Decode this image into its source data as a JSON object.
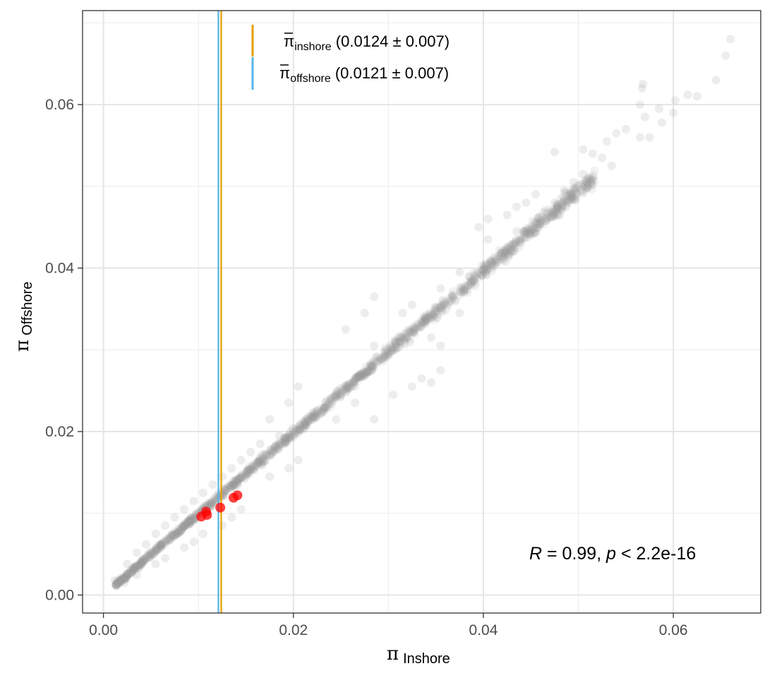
{
  "chart_data": {
    "type": "scatter",
    "xlabel": {
      "symbol": "π",
      "sub": "Inshore"
    },
    "ylabel": {
      "symbol": "π",
      "sub": "Offshore"
    },
    "xlim": [
      -0.0022,
      0.0692
    ],
    "ylim": [
      -0.0022,
      0.0715
    ],
    "x_ticks": [
      0.0,
      0.02,
      0.04,
      0.06
    ],
    "x_tick_labels": [
      "0.00",
      "0.02",
      "0.04",
      "0.06"
    ],
    "y_ticks": [
      0.0,
      0.02,
      0.04,
      0.06
    ],
    "y_tick_labels": [
      "0.00",
      "0.02",
      "0.04",
      "0.06"
    ],
    "grid": true,
    "background_series": {
      "color": "#999999",
      "description_points_from": 0.0013,
      "outliers": [
        {
          "x": 0.066,
          "y": 0.068
        },
        {
          "x": 0.0655,
          "y": 0.066
        },
        {
          "x": 0.0645,
          "y": 0.063
        },
        {
          "x": 0.0625,
          "y": 0.061
        },
        {
          "x": 0.0615,
          "y": 0.0612
        },
        {
          "x": 0.06,
          "y": 0.059
        },
        {
          "x": 0.0602,
          "y": 0.0605
        },
        {
          "x": 0.0585,
          "y": 0.0595
        },
        {
          "x": 0.0588,
          "y": 0.0578
        },
        {
          "x": 0.0568,
          "y": 0.0625
        },
        {
          "x": 0.0567,
          "y": 0.062
        },
        {
          "x": 0.0565,
          "y": 0.06
        },
        {
          "x": 0.057,
          "y": 0.0585
        },
        {
          "x": 0.0565,
          "y": 0.056
        },
        {
          "x": 0.0575,
          "y": 0.056
        },
        {
          "x": 0.055,
          "y": 0.057
        },
        {
          "x": 0.054,
          "y": 0.0565
        },
        {
          "x": 0.053,
          "y": 0.0555
        },
        {
          "x": 0.0515,
          "y": 0.054
        },
        {
          "x": 0.0505,
          "y": 0.0545
        },
        {
          "x": 0.0525,
          "y": 0.0535
        },
        {
          "x": 0.0535,
          "y": 0.0525
        },
        {
          "x": 0.0505,
          "y": 0.0515
        },
        {
          "x": 0.0495,
          "y": 0.0505
        },
        {
          "x": 0.0475,
          "y": 0.0542
        },
        {
          "x": 0.0485,
          "y": 0.0495
        },
        {
          "x": 0.0475,
          "y": 0.048
        },
        {
          "x": 0.0465,
          "y": 0.047
        },
        {
          "x": 0.0455,
          "y": 0.049
        },
        {
          "x": 0.0445,
          "y": 0.048
        },
        {
          "x": 0.0455,
          "y": 0.0455
        },
        {
          "x": 0.0435,
          "y": 0.0475
        },
        {
          "x": 0.0425,
          "y": 0.0465
        },
        {
          "x": 0.0435,
          "y": 0.0445
        },
        {
          "x": 0.0425,
          "y": 0.0425
        },
        {
          "x": 0.0405,
          "y": 0.046
        },
        {
          "x": 0.0395,
          "y": 0.045
        },
        {
          "x": 0.0405,
          "y": 0.0435
        },
        {
          "x": 0.0385,
          "y": 0.039
        },
        {
          "x": 0.0375,
          "y": 0.0395
        },
        {
          "x": 0.0355,
          "y": 0.0375
        },
        {
          "x": 0.0375,
          "y": 0.0345
        },
        {
          "x": 0.0355,
          "y": 0.0305
        },
        {
          "x": 0.0345,
          "y": 0.0315
        },
        {
          "x": 0.0325,
          "y": 0.0355
        },
        {
          "x": 0.0315,
          "y": 0.0345
        },
        {
          "x": 0.0285,
          "y": 0.0365
        },
        {
          "x": 0.0275,
          "y": 0.0345
        },
        {
          "x": 0.0255,
          "y": 0.0325
        },
        {
          "x": 0.0285,
          "y": 0.0305
        },
        {
          "x": 0.0355,
          "y": 0.0275
        },
        {
          "x": 0.0335,
          "y": 0.0265
        },
        {
          "x": 0.0325,
          "y": 0.0255
        },
        {
          "x": 0.0345,
          "y": 0.026
        },
        {
          "x": 0.0305,
          "y": 0.0245
        },
        {
          "x": 0.0285,
          "y": 0.0215
        },
        {
          "x": 0.0265,
          "y": 0.0235
        },
        {
          "x": 0.0245,
          "y": 0.0215
        },
        {
          "x": 0.0225,
          "y": 0.0225
        },
        {
          "x": 0.0205,
          "y": 0.0255
        },
        {
          "x": 0.0195,
          "y": 0.0235
        },
        {
          "x": 0.0185,
          "y": 0.0195
        },
        {
          "x": 0.0175,
          "y": 0.0215
        },
        {
          "x": 0.0165,
          "y": 0.0185
        },
        {
          "x": 0.0155,
          "y": 0.0175
        },
        {
          "x": 0.0205,
          "y": 0.0165
        },
        {
          "x": 0.0195,
          "y": 0.0155
        },
        {
          "x": 0.0175,
          "y": 0.0145
        },
        {
          "x": 0.0145,
          "y": 0.0165
        },
        {
          "x": 0.0135,
          "y": 0.0155
        },
        {
          "x": 0.0125,
          "y": 0.0145
        },
        {
          "x": 0.0115,
          "y": 0.0135
        },
        {
          "x": 0.0105,
          "y": 0.0125
        },
        {
          "x": 0.0095,
          "y": 0.0115
        },
        {
          "x": 0.0085,
          "y": 0.0105
        },
        {
          "x": 0.0145,
          "y": 0.0105
        },
        {
          "x": 0.0135,
          "y": 0.0095
        },
        {
          "x": 0.0125,
          "y": 0.0085
        },
        {
          "x": 0.0075,
          "y": 0.0095
        },
        {
          "x": 0.0065,
          "y": 0.0085
        },
        {
          "x": 0.0055,
          "y": 0.0075
        },
        {
          "x": 0.0105,
          "y": 0.0075
        },
        {
          "x": 0.0095,
          "y": 0.0065
        },
        {
          "x": 0.0085,
          "y": 0.0058
        },
        {
          "x": 0.0045,
          "y": 0.0062
        },
        {
          "x": 0.0035,
          "y": 0.0052
        },
        {
          "x": 0.0025,
          "y": 0.0038
        },
        {
          "x": 0.0065,
          "y": 0.0045
        },
        {
          "x": 0.0055,
          "y": 0.0038
        },
        {
          "x": 0.0035,
          "y": 0.0025
        },
        {
          "x": 0.0015,
          "y": 0.0012
        },
        {
          "x": 0.0022,
          "y": 0.0015
        },
        {
          "x": 0.0012,
          "y": 0.0018
        }
      ]
    },
    "highlight_points": [
      {
        "x": 0.0103,
        "y": 0.0096
      },
      {
        "x": 0.0108,
        "y": 0.0102
      },
      {
        "x": 0.0109,
        "y": 0.0098
      },
      {
        "x": 0.0123,
        "y": 0.0107
      },
      {
        "x": 0.0137,
        "y": 0.0119
      },
      {
        "x": 0.0141,
        "y": 0.0122
      }
    ],
    "highlight_color": "#ff0000",
    "vlines": [
      {
        "x": 0.0121,
        "color": "#56b4e9"
      },
      {
        "x": 0.0124,
        "color": "#e69f00"
      }
    ],
    "legend": {
      "placement": "top-center",
      "items": [
        {
          "symbol": "π",
          "sub": "inshore",
          "text": " (0.0124 ± 0.007)",
          "color": "#e69f00"
        },
        {
          "symbol": "π",
          "sub": "offshore",
          "text": " (0.0121 ± 0.007)",
          "color": "#56b4e9"
        }
      ]
    },
    "annotation": {
      "r_label": "R",
      "r_text": " = 0.99, ",
      "p_label": "p",
      "p_text": " < 2.2e-16"
    }
  }
}
